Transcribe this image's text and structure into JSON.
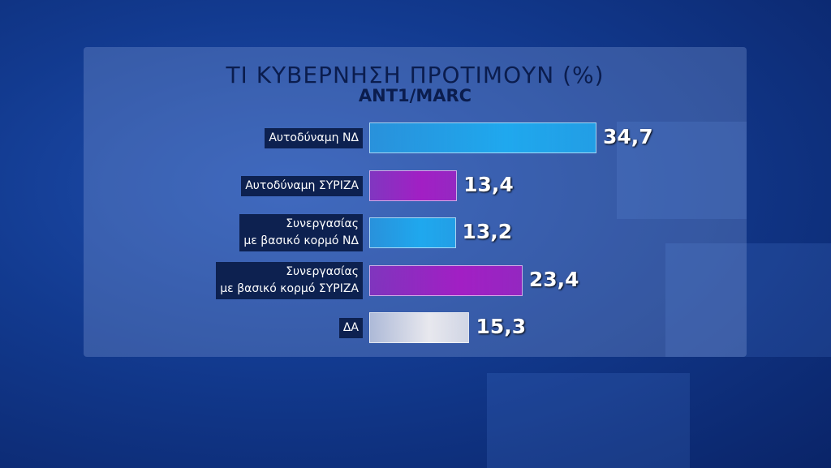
{
  "chart_data": {
    "type": "bar",
    "orientation": "horizontal",
    "title": "ΤΙ ΚΥΒΕΡΝΗΣΗ ΠΡΟΤΙΜΟΥΝ (%)",
    "subtitle": "ANT1/MARC",
    "categories": [
      "Αυτοδύναμη ΝΔ",
      "Αυτοδύναμη ΣΥΡΙΖΑ",
      "Συνεργασίας\nμε βασικό κορμό ΝΔ",
      "Συνεργασίας\nμε βασικό κορμό ΣΥΡΙΖΑ",
      "ΔΑ"
    ],
    "values": [
      34.7,
      13.4,
      13.2,
      23.4,
      15.3
    ],
    "value_labels": [
      "34,7",
      "13,4",
      "13,2",
      "23,4",
      "15,3"
    ],
    "colors": [
      "#1fa8ee",
      "#a21fc4",
      "#1fa8ee",
      "#a21fc4",
      "#e8e8ee"
    ]
  }
}
